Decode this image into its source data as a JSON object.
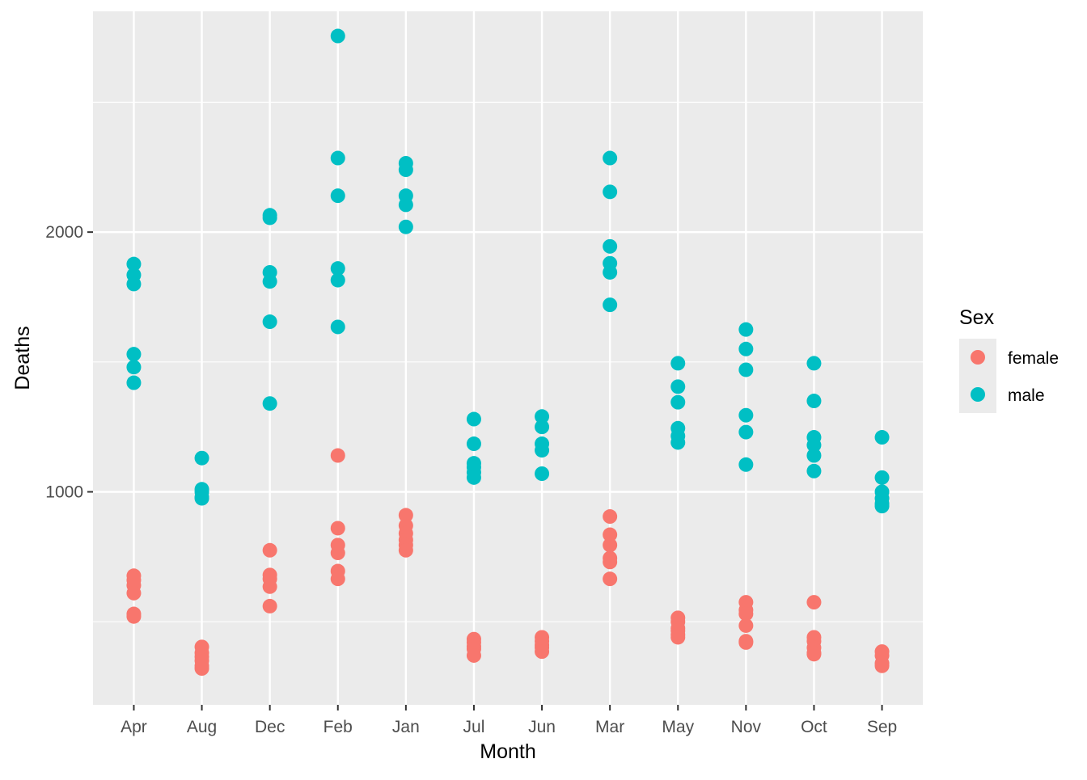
{
  "chart_data": {
    "type": "scatter",
    "xlabel": "Month",
    "ylabel": "Deaths",
    "categories": [
      "Apr",
      "Aug",
      "Dec",
      "Feb",
      "Jan",
      "Jul",
      "Jun",
      "Mar",
      "May",
      "Nov",
      "Oct",
      "Sep"
    ],
    "ylim": [
      180,
      2850
    ],
    "y_ticks": [
      1000,
      2000
    ],
    "y_tick_labels": [
      "1000",
      "2000"
    ],
    "y_minor_ticks": [
      500,
      1500,
      2500
    ],
    "grid": true,
    "legend": {
      "title": "Sex",
      "position": "right",
      "entries": [
        "female",
        "male"
      ]
    },
    "colors": {
      "female": "#F8766D",
      "male": "#00BFC4",
      "panel": "#EBEBEB",
      "grid": "#FFFFFF"
    },
    "series": [
      {
        "name": "female",
        "points": [
          {
            "x": "Apr",
            "y": 677
          },
          {
            "x": "Apr",
            "y": 660
          },
          {
            "x": "Apr",
            "y": 640
          },
          {
            "x": "Apr",
            "y": 610
          },
          {
            "x": "Apr",
            "y": 530
          },
          {
            "x": "Apr",
            "y": 520
          },
          {
            "x": "Aug",
            "y": 403
          },
          {
            "x": "Aug",
            "y": 380
          },
          {
            "x": "Aug",
            "y": 365
          },
          {
            "x": "Aug",
            "y": 350
          },
          {
            "x": "Aug",
            "y": 330
          },
          {
            "x": "Aug",
            "y": 320
          },
          {
            "x": "Dec",
            "y": 775
          },
          {
            "x": "Dec",
            "y": 680
          },
          {
            "x": "Dec",
            "y": 665
          },
          {
            "x": "Dec",
            "y": 635
          },
          {
            "x": "Dec",
            "y": 560
          },
          {
            "x": "Feb",
            "y": 1140
          },
          {
            "x": "Feb",
            "y": 860
          },
          {
            "x": "Feb",
            "y": 795
          },
          {
            "x": "Feb",
            "y": 765
          },
          {
            "x": "Feb",
            "y": 695
          },
          {
            "x": "Feb",
            "y": 665
          },
          {
            "x": "Jan",
            "y": 910
          },
          {
            "x": "Jan",
            "y": 870
          },
          {
            "x": "Jan",
            "y": 840
          },
          {
            "x": "Jan",
            "y": 815
          },
          {
            "x": "Jan",
            "y": 795
          },
          {
            "x": "Jan",
            "y": 775
          },
          {
            "x": "Jul",
            "y": 433
          },
          {
            "x": "Jul",
            "y": 420
          },
          {
            "x": "Jul",
            "y": 405
          },
          {
            "x": "Jul",
            "y": 395
          },
          {
            "x": "Jul",
            "y": 370
          },
          {
            "x": "Jun",
            "y": 440
          },
          {
            "x": "Jun",
            "y": 425
          },
          {
            "x": "Jun",
            "y": 410
          },
          {
            "x": "Jun",
            "y": 400
          },
          {
            "x": "Jun",
            "y": 385
          },
          {
            "x": "Mar",
            "y": 905
          },
          {
            "x": "Mar",
            "y": 835
          },
          {
            "x": "Mar",
            "y": 795
          },
          {
            "x": "Mar",
            "y": 745
          },
          {
            "x": "Mar",
            "y": 730
          },
          {
            "x": "Mar",
            "y": 665
          },
          {
            "x": "May",
            "y": 515
          },
          {
            "x": "May",
            "y": 500
          },
          {
            "x": "May",
            "y": 475
          },
          {
            "x": "May",
            "y": 465
          },
          {
            "x": "May",
            "y": 450
          },
          {
            "x": "May",
            "y": 440
          },
          {
            "x": "Nov",
            "y": 575
          },
          {
            "x": "Nov",
            "y": 545
          },
          {
            "x": "Nov",
            "y": 530
          },
          {
            "x": "Nov",
            "y": 485
          },
          {
            "x": "Nov",
            "y": 425
          },
          {
            "x": "Nov",
            "y": 420
          },
          {
            "x": "Oct",
            "y": 575
          },
          {
            "x": "Oct",
            "y": 440
          },
          {
            "x": "Oct",
            "y": 425
          },
          {
            "x": "Oct",
            "y": 400
          },
          {
            "x": "Oct",
            "y": 380
          },
          {
            "x": "Oct",
            "y": 375
          },
          {
            "x": "Sep",
            "y": 385
          },
          {
            "x": "Sep",
            "y": 370
          },
          {
            "x": "Sep",
            "y": 340
          },
          {
            "x": "Sep",
            "y": 330
          }
        ]
      },
      {
        "name": "male",
        "points": [
          {
            "x": "Apr",
            "y": 1877
          },
          {
            "x": "Apr",
            "y": 1835
          },
          {
            "x": "Apr",
            "y": 1800
          },
          {
            "x": "Apr",
            "y": 1530
          },
          {
            "x": "Apr",
            "y": 1480
          },
          {
            "x": "Apr",
            "y": 1420
          },
          {
            "x": "Aug",
            "y": 1130
          },
          {
            "x": "Aug",
            "y": 1010
          },
          {
            "x": "Aug",
            "y": 1000
          },
          {
            "x": "Aug",
            "y": 980
          },
          {
            "x": "Aug",
            "y": 975
          },
          {
            "x": "Dec",
            "y": 2065
          },
          {
            "x": "Dec",
            "y": 2055
          },
          {
            "x": "Dec",
            "y": 1845
          },
          {
            "x": "Dec",
            "y": 1810
          },
          {
            "x": "Dec",
            "y": 1655
          },
          {
            "x": "Dec",
            "y": 1340
          },
          {
            "x": "Feb",
            "y": 2755
          },
          {
            "x": "Feb",
            "y": 2285
          },
          {
            "x": "Feb",
            "y": 2140
          },
          {
            "x": "Feb",
            "y": 1860
          },
          {
            "x": "Feb",
            "y": 1815
          },
          {
            "x": "Feb",
            "y": 1635
          },
          {
            "x": "Jan",
            "y": 2265
          },
          {
            "x": "Jan",
            "y": 2240
          },
          {
            "x": "Jan",
            "y": 2140
          },
          {
            "x": "Jan",
            "y": 2105
          },
          {
            "x": "Jan",
            "y": 2020
          },
          {
            "x": "Jul",
            "y": 1280
          },
          {
            "x": "Jul",
            "y": 1185
          },
          {
            "x": "Jul",
            "y": 1110
          },
          {
            "x": "Jul",
            "y": 1095
          },
          {
            "x": "Jul",
            "y": 1075
          },
          {
            "x": "Jul",
            "y": 1055
          },
          {
            "x": "Jun",
            "y": 1290
          },
          {
            "x": "Jun",
            "y": 1250
          },
          {
            "x": "Jun",
            "y": 1185
          },
          {
            "x": "Jun",
            "y": 1160
          },
          {
            "x": "Jun",
            "y": 1070
          },
          {
            "x": "Mar",
            "y": 2285
          },
          {
            "x": "Mar",
            "y": 2155
          },
          {
            "x": "Mar",
            "y": 1945
          },
          {
            "x": "Mar",
            "y": 1880
          },
          {
            "x": "Mar",
            "y": 1845
          },
          {
            "x": "Mar",
            "y": 1720
          },
          {
            "x": "May",
            "y": 1495
          },
          {
            "x": "May",
            "y": 1405
          },
          {
            "x": "May",
            "y": 1345
          },
          {
            "x": "May",
            "y": 1245
          },
          {
            "x": "May",
            "y": 1215
          },
          {
            "x": "May",
            "y": 1190
          },
          {
            "x": "Nov",
            "y": 1625
          },
          {
            "x": "Nov",
            "y": 1550
          },
          {
            "x": "Nov",
            "y": 1470
          },
          {
            "x": "Nov",
            "y": 1295
          },
          {
            "x": "Nov",
            "y": 1230
          },
          {
            "x": "Nov",
            "y": 1105
          },
          {
            "x": "Oct",
            "y": 1495
          },
          {
            "x": "Oct",
            "y": 1350
          },
          {
            "x": "Oct",
            "y": 1210
          },
          {
            "x": "Oct",
            "y": 1180
          },
          {
            "x": "Oct",
            "y": 1140
          },
          {
            "x": "Oct",
            "y": 1080
          },
          {
            "x": "Sep",
            "y": 1210
          },
          {
            "x": "Sep",
            "y": 1055
          },
          {
            "x": "Sep",
            "y": 1000
          },
          {
            "x": "Sep",
            "y": 975
          },
          {
            "x": "Sep",
            "y": 955
          },
          {
            "x": "Sep",
            "y": 945
          }
        ]
      }
    ]
  }
}
